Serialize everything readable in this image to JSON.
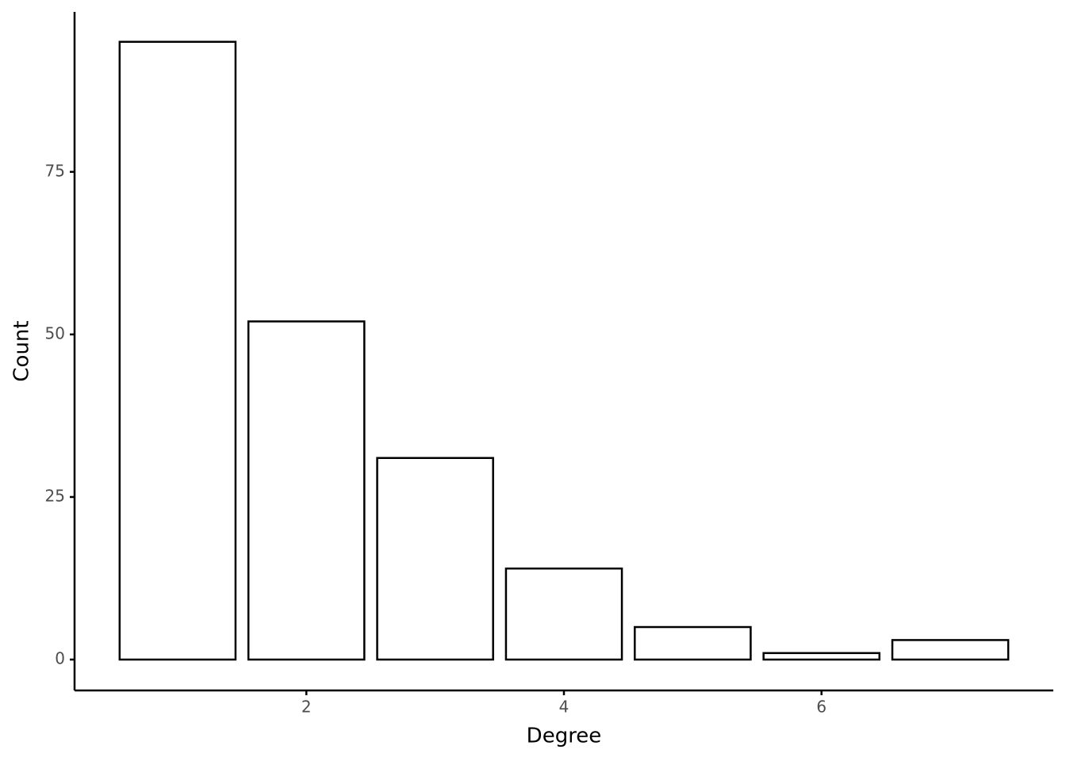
{
  "chart_data": {
    "type": "bar",
    "x_label": "Degree",
    "y_label": "Count",
    "x": [
      1,
      2,
      3,
      4,
      5,
      6,
      7
    ],
    "values": [
      95,
      52,
      31,
      14,
      5,
      1,
      3
    ],
    "color": "#ffffff",
    "edgecolor": "#000000",
    "bar_width": 0.9,
    "xlim": [
      0.2,
      7.8
    ],
    "xticks": [
      2,
      4,
      6
    ],
    "ylim": [
      -4.75,
      99.6
    ],
    "yticks": [
      0,
      25,
      50,
      75
    ],
    "grid": false
  }
}
